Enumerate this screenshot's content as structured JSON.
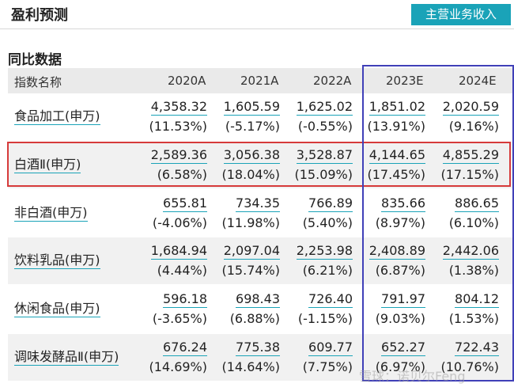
{
  "header": {
    "title": "盈利预测",
    "main_revenue_button": "主营业务收入"
  },
  "section": {
    "title": "同比数据"
  },
  "table": {
    "label_header": "指数名称",
    "years": [
      "2020A",
      "2021A",
      "2022A",
      "2023E",
      "2024E"
    ],
    "rows": [
      {
        "name": "食品加工(申万)",
        "values": [
          "4,358.32",
          "1,605.59",
          "1,625.02",
          "1,851.02",
          "2,020.59"
        ],
        "pcts": [
          "(11.53%)",
          "(-5.17%)",
          "(-0.55%)",
          "(13.91%)",
          "(9.16%)"
        ]
      },
      {
        "name": "白酒Ⅱ(申万)",
        "values": [
          "2,589.36",
          "3,056.38",
          "3,528.87",
          "4,144.65",
          "4,855.29"
        ],
        "pcts": [
          "(6.58%)",
          "(18.04%)",
          "(15.09%)",
          "(17.45%)",
          "(17.15%)"
        ]
      },
      {
        "name": "非白酒(申万)",
        "values": [
          "655.81",
          "734.35",
          "766.89",
          "835.66",
          "886.65"
        ],
        "pcts": [
          "(-4.06%)",
          "(11.98%)",
          "(5.40%)",
          "(8.97%)",
          "(6.10%)"
        ]
      },
      {
        "name": "饮料乳品(申万)",
        "values": [
          "1,684.94",
          "2,097.04",
          "2,253.98",
          "2,408.89",
          "2,442.06"
        ],
        "pcts": [
          "(4.44%)",
          "(15.74%)",
          "(6.21%)",
          "(6.87%)",
          "(1.38%)"
        ]
      },
      {
        "name": "休闲食品(申万)",
        "values": [
          "596.18",
          "698.43",
          "726.40",
          "791.97",
          "804.12"
        ],
        "pcts": [
          "(-3.65%)",
          "(6.88%)",
          "(-1.15%)",
          "(9.03%)",
          "(1.53%)"
        ]
      },
      {
        "name": "调味发酵品Ⅱ(申万)",
        "values": [
          "676.24",
          "775.38",
          "609.77",
          "652.27",
          "722.43"
        ],
        "pcts": [
          "(14.69%)",
          "(14.64%)",
          "(7.75%)",
          "(6.97%)",
          "(10.76%)"
        ]
      }
    ]
  },
  "watermark": "雪球：诺贝尔Feng",
  "colors": {
    "accent": "#1aa3b8",
    "highlight_row_border": "#d63a3a",
    "forecast_border": "#4040b8"
  }
}
